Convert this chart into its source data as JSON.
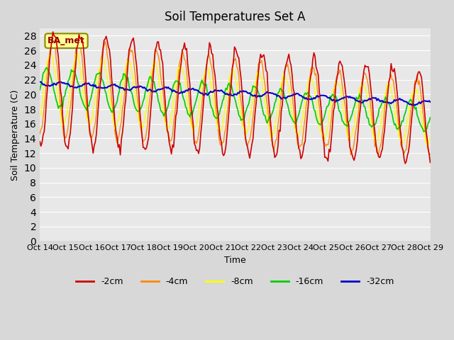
{
  "title": "Soil Temperatures Set A",
  "xlabel": "Time",
  "ylabel": "Soil Temperature (C)",
  "ylim": [
    0,
    29
  ],
  "yticks": [
    0,
    2,
    4,
    6,
    8,
    10,
    12,
    14,
    16,
    18,
    20,
    22,
    24,
    26,
    28
  ],
  "fig_bg_color": "#d8d8d8",
  "plot_bg_color": "#e8e8e8",
  "legend_label": "BA_met",
  "series_colors": {
    "-2cm": "#cc0000",
    "-4cm": "#ff8800",
    "-8cm": "#ffff00",
    "-16cm": "#00cc00",
    "-32cm": "#0000cc"
  },
  "x_tick_labels": [
    "Oct 14",
    "Oct 15",
    "Oct 16",
    "Oct 17",
    "Oct 18",
    "Oct 19",
    "Oct 20",
    "Oct 21",
    "Oct 22",
    "Oct 23",
    "Oct 24",
    "Oct 25",
    "Oct 26",
    "Oct 27",
    "Oct 28",
    "Oct 29"
  ],
  "n_days": 15,
  "start_day": 14
}
